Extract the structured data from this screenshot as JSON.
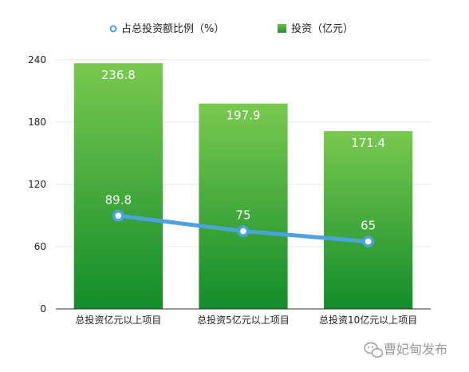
{
  "chart_data": {
    "type": "bar",
    "categories": [
      "总投资亿元以上项目",
      "总投资5亿元以上项目",
      "总投资10亿元以上项目"
    ],
    "series": [
      {
        "name": "投资（亿元）",
        "type": "bar",
        "values": [
          236.8,
          197.9,
          171.4
        ],
        "color": "#2e9e34"
      },
      {
        "name": "占总投资额比例（%）",
        "type": "line",
        "values": [
          89.8,
          75,
          65
        ],
        "color": "#4aa3df"
      }
    ],
    "ylim": [
      0,
      240
    ],
    "yticks": [
      0,
      60,
      120,
      180,
      240
    ],
    "legend": "top",
    "grid": true
  },
  "watermark": {
    "text": "曹妃甸发布",
    "icon": "wechat-icon"
  }
}
